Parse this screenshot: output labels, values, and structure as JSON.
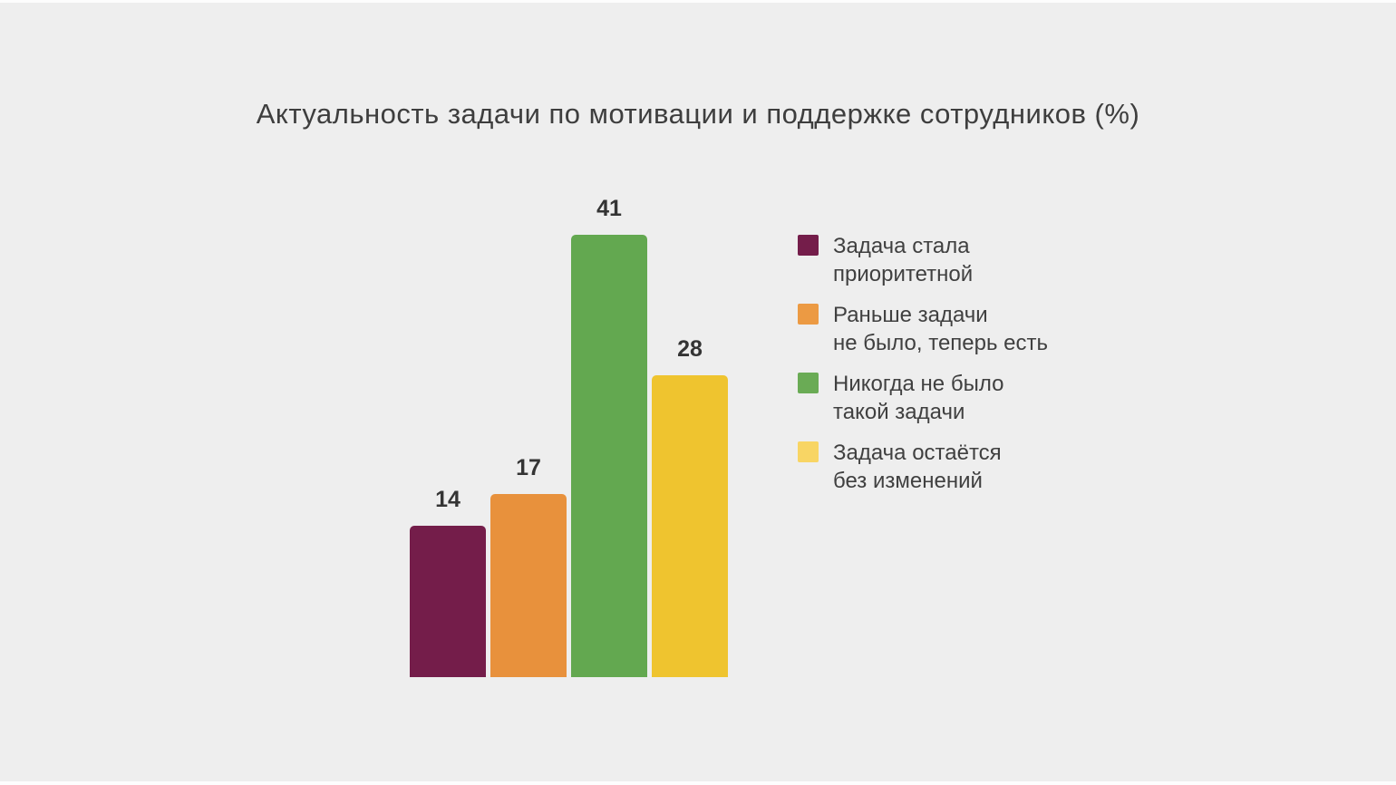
{
  "page": {
    "background_color": "#EEEEEE",
    "title_color": "#3E3E3E",
    "value_label_color": "#343434",
    "legend_text_color": "#404040"
  },
  "chart_data": {
    "type": "bar",
    "title": "Актуальность задачи по мотивации и поддержке сотрудников (%)",
    "unit": "%",
    "xlabel": "",
    "ylabel": "",
    "ylim": [
      0,
      41
    ],
    "grid": false,
    "axes_visible": false,
    "value_labels": "above bars",
    "legend_position": "right",
    "categories": [
      "Задача стала приоритетной",
      "Раньше задачи не было, теперь есть",
      "Никогда не было такой задачи",
      "Задача остаётся без изменений"
    ],
    "values": [
      14,
      17,
      41,
      28
    ],
    "series": [
      {
        "value": 14,
        "bar_color": "#741D4A",
        "legend_color": "#741D4A",
        "legend_lines": "Задача стала\nприоритетной"
      },
      {
        "value": 17,
        "bar_color": "#E8913C",
        "legend_color": "#EC9A43",
        "legend_lines": "Раньше задачи\nне было, теперь есть"
      },
      {
        "value": 41,
        "bar_color": "#63A850",
        "legend_color": "#6AAB55",
        "legend_lines": "Никогда не было\nтакой задачи"
      },
      {
        "value": 28,
        "bar_color": "#EFC42F",
        "legend_color": "#F8D564",
        "legend_lines": "Задача остаётся\nбез изменений"
      }
    ]
  }
}
